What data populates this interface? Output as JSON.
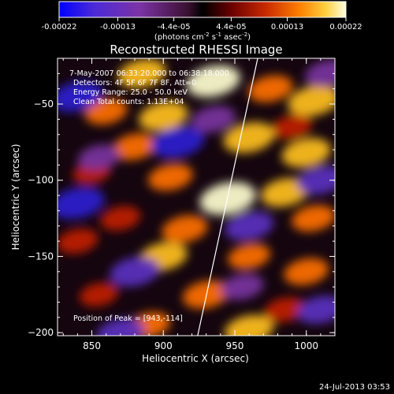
{
  "colorbar": {
    "ticks": [
      "-0.00022",
      "-0.00013",
      "-4.4e-05",
      "4.4e-05",
      "0.00013",
      "0.00022"
    ],
    "units_prefix": "(photons cm",
    "units_sup1": "-2",
    "units_mid": " s",
    "units_sup2": "-1",
    "units_mid2": " asec",
    "units_sup3": "-2",
    "units_suffix": ")"
  },
  "annotations": {
    "time_range": "7-May-2007 06:33:20.000 to 06:38:18.000",
    "detectors": "Detectors: 4F 5F 6F 7F 8F, Att=0",
    "energy": "Energy Range: 25.0 - 50.0 keV",
    "clean": "Clean     Total counts: 1.13E+04",
    "peak": "Position of Peak = [943,-114]"
  },
  "timestamp": "24-Jul-2013 03:53",
  "chart_data": {
    "type": "heatmap",
    "title": "Reconstructed RHESSI Image",
    "xlabel": "Heliocentric X (arcsec)",
    "ylabel": "Heliocentric Y (arcsec)",
    "xlim": [
      826,
      1020
    ],
    "ylim": [
      -202,
      -20
    ],
    "xticks": [
      850,
      900,
      950,
      1000
    ],
    "yticks": [
      -50,
      -100,
      -150,
      -200
    ],
    "colorbar_range": [
      -0.00022,
      0.00022
    ],
    "peak_position": [
      943,
      -114
    ],
    "limb_line": [
      [
        924,
        -202
      ],
      [
        966,
        -20
      ]
    ],
    "blobs": [
      {
        "x": 885,
        "y": -30,
        "v": 0.00015
      },
      {
        "x": 935,
        "y": -35,
        "v": 0.0002
      },
      {
        "x": 975,
        "y": -40,
        "v": 0.00012
      },
      {
        "x": 1005,
        "y": -48,
        "v": 0.00018
      },
      {
        "x": 860,
        "y": -55,
        "v": 0.0001
      },
      {
        "x": 900,
        "y": -58,
        "v": 0.00016
      },
      {
        "x": 990,
        "y": -65,
        "v": 8e-05
      },
      {
        "x": 880,
        "y": -78,
        "v": 0.00012
      },
      {
        "x": 960,
        "y": -72,
        "v": 0.00018
      },
      {
        "x": 1000,
        "y": -82,
        "v": 0.00016
      },
      {
        "x": 850,
        "y": -95,
        "v": 6e-05
      },
      {
        "x": 905,
        "y": -98,
        "v": 0.00012
      },
      {
        "x": 945,
        "y": -112,
        "v": 0.00022
      },
      {
        "x": 985,
        "y": -108,
        "v": 0.00015
      },
      {
        "x": 870,
        "y": -125,
        "v": 8e-05
      },
      {
        "x": 915,
        "y": -132,
        "v": 0.00013
      },
      {
        "x": 1005,
        "y": -125,
        "v": 0.00011
      },
      {
        "x": 840,
        "y": -140,
        "v": 9e-05
      },
      {
        "x": 900,
        "y": -150,
        "v": 0.00015
      },
      {
        "x": 960,
        "y": -150,
        "v": 0.0001
      },
      {
        "x": 1000,
        "y": -160,
        "v": 0.00012
      },
      {
        "x": 855,
        "y": -175,
        "v": 7e-05
      },
      {
        "x": 930,
        "y": -175,
        "v": 0.00014
      },
      {
        "x": 985,
        "y": -185,
        "v": 9e-05
      },
      {
        "x": 890,
        "y": -195,
        "v": 0.0001
      },
      {
        "x": 960,
        "y": -198,
        "v": 0.00016
      },
      {
        "x": 840,
        "y": -45,
        "v": -0.00018
      },
      {
        "x": 910,
        "y": -75,
        "v": -0.0002
      },
      {
        "x": 1010,
        "y": -100,
        "v": -0.00015
      },
      {
        "x": 840,
        "y": -115,
        "v": -0.0002
      },
      {
        "x": 960,
        "y": -130,
        "v": -0.00016
      },
      {
        "x": 880,
        "y": -160,
        "v": -0.00017
      },
      {
        "x": 1010,
        "y": -185,
        "v": -0.00014
      },
      {
        "x": 870,
        "y": -200,
        "v": -0.00015
      },
      {
        "x": 935,
        "y": -60,
        "v": -0.00012
      },
      {
        "x": 1015,
        "y": -30,
        "v": -0.00013
      },
      {
        "x": 855,
        "y": -85,
        "v": -0.0001
      },
      {
        "x": 955,
        "y": -170,
        "v": -0.00011
      }
    ]
  }
}
